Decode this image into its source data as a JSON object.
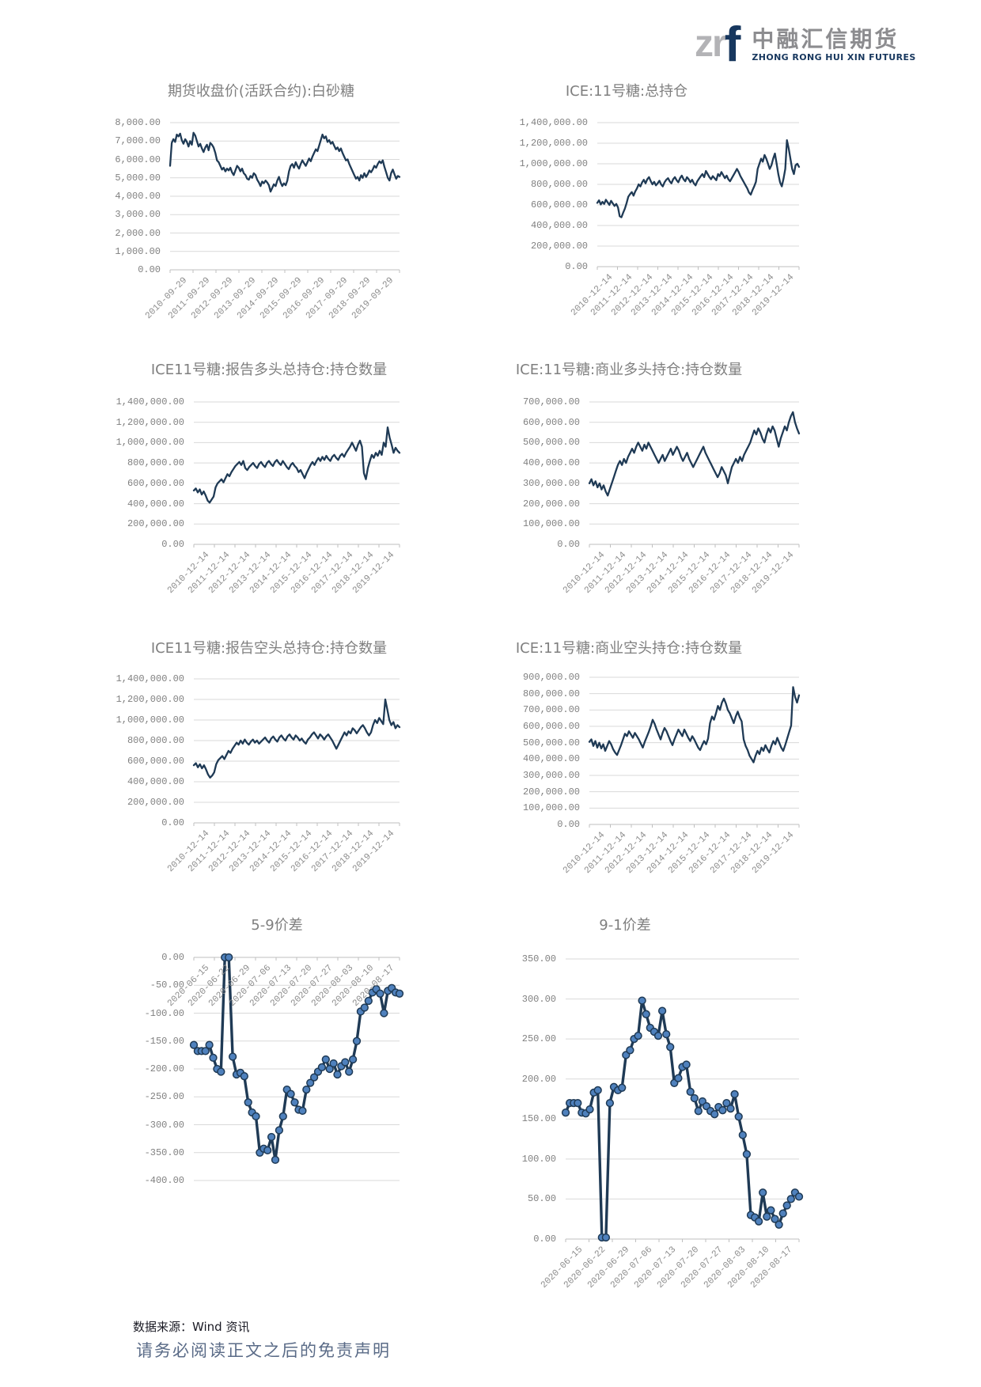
{
  "logo": {
    "zr": "zr",
    "f": "f",
    "name_cn": "中融汇信期货",
    "name_en": "ZHONG RONG HUI XIN FUTURES"
  },
  "footer": {
    "source": "数据来源：Wind 资讯",
    "disclaimer": "请务必阅读正文之后的免责声明"
  },
  "colors": {
    "line": "#1f3a55",
    "marker_fill": "#4f81bd",
    "grid": "#d9d9d9",
    "axis": "#bfbfbf",
    "tick_text": "#808080",
    "title_text": "#7f7f7f",
    "logo_gray": "#b3b3b6",
    "logo_navy": "#17375e",
    "disclaimer_blue": "#5a6b87"
  },
  "chart_data": [
    {
      "type": "line",
      "title": "期货收盘价(活跃合约):白砂糖",
      "y_min": 0,
      "y_max": 8000,
      "values_scale": 1,
      "y_tick_labels": [
        "8,000.00",
        "7,000.00",
        "6,000.00",
        "5,000.00",
        "4,000.00",
        "3,000.00",
        "2,000.00",
        "1,000.00",
        "0.00"
      ],
      "x_labels": [
        "2010-09-29",
        "2011-09-29",
        "2012-09-29",
        "2013-09-29",
        "2014-09-29",
        "2015-09-29",
        "2016-09-29",
        "2017-09-29",
        "2018-09-29",
        "2019-09-29"
      ],
      "markers": false,
      "values": [
        5650,
        6900,
        7100,
        6950,
        7350,
        7250,
        7400,
        7050,
        6850,
        7100,
        6950,
        6700,
        7000,
        6800,
        7450,
        7300,
        7000,
        6700,
        6850,
        6600,
        6400,
        6650,
        6800,
        6500,
        6900,
        6800,
        6650,
        6350,
        5950,
        5850,
        5650,
        5450,
        5550,
        5350,
        5500,
        5400,
        5550,
        5300,
        5150,
        5400,
        5650,
        5550,
        5350,
        5500,
        5250,
        5150,
        4950,
        4900,
        5100,
        5000,
        5250,
        5150,
        4900,
        4750,
        4550,
        4800,
        4700,
        4850,
        4750,
        4600,
        4250,
        4450,
        4650,
        4550,
        4850,
        5050,
        4750,
        4550,
        4700,
        4600,
        4850,
        5350,
        5650,
        5750,
        5550,
        5850,
        5650,
        5500,
        5750,
        5950,
        5800,
        5650,
        5850,
        6050,
        5900,
        6150,
        6350,
        6550,
        6450,
        6750,
        7050,
        7350,
        7150,
        7250,
        6950,
        7050,
        6850,
        6950,
        6750,
        6550,
        6650,
        6450,
        6600,
        6350,
        6150,
        5950,
        6000,
        5750,
        5550,
        5350,
        5150,
        4950,
        5050,
        4850,
        5150,
        5000,
        5250,
        5050,
        5200,
        5400,
        5300,
        5450,
        5650,
        5550,
        5750,
        5900,
        5800,
        5950,
        5600,
        5300,
        5000,
        4850,
        5250,
        5450,
        5200,
        4950,
        5100,
        5050
      ]
    },
    {
      "type": "line",
      "title": "ICE:11号糖:总持仓",
      "y_min": 0,
      "y_max": 1400,
      "values_scale": 1000,
      "y_tick_labels": [
        "1,400,000.00",
        "1,200,000.00",
        "1,000,000.00",
        "800,000.00",
        "600,000.00",
        "400,000.00",
        "200,000.00",
        "0.00"
      ],
      "x_labels": [
        "2010-12-14",
        "2011-12-14",
        "2012-12-14",
        "2013-12-14",
        "2014-12-14",
        "2015-12-14",
        "2016-12-14",
        "2017-12-14",
        "2018-12-14",
        "2019-12-14"
      ],
      "markers": false,
      "values": [
        620,
        645,
        605,
        630,
        610,
        650,
        625,
        600,
        640,
        615,
        590,
        610,
        575,
        490,
        480,
        525,
        565,
        620,
        680,
        705,
        725,
        690,
        730,
        760,
        800,
        780,
        820,
        845,
        810,
        850,
        870,
        830,
        800,
        825,
        790,
        810,
        835,
        800,
        780,
        820,
        845,
        860,
        830,
        810,
        850,
        870,
        840,
        820,
        860,
        885,
        850,
        830,
        870,
        850,
        820,
        845,
        810,
        790,
        830,
        855,
        880,
        900,
        870,
        930,
        900,
        870,
        850,
        880,
        860,
        840,
        900,
        880,
        920,
        890,
        860,
        885,
        850,
        830,
        860,
        890,
        920,
        950,
        920,
        880,
        850,
        820,
        790,
        760,
        720,
        700,
        745,
        780,
        825,
        950,
        1000,
        1050,
        1020,
        1085,
        1050,
        1000,
        950,
        985,
        1050,
        1100,
        1000,
        900,
        820,
        780,
        855,
        950,
        1230,
        1150,
        1050,
        950,
        900,
        985,
        1000,
        970
      ]
    },
    {
      "type": "line",
      "title": "ICE11号糖:报告多头总持仓:持仓数量",
      "y_min": 0,
      "y_max": 1400,
      "values_scale": 1000,
      "y_tick_labels": [
        "1,400,000.00",
        "1,200,000.00",
        "1,000,000.00",
        "800,000.00",
        "600,000.00",
        "400,000.00",
        "200,000.00",
        "0.00"
      ],
      "x_labels": [
        "2010-12-14",
        "2011-12-14",
        "2012-12-14",
        "2013-12-14",
        "2014-12-14",
        "2015-12-14",
        "2016-12-14",
        "2017-12-14",
        "2018-12-14",
        "2019-12-14"
      ],
      "markers": false,
      "values": [
        530,
        550,
        510,
        540,
        490,
        520,
        480,
        430,
        410,
        440,
        470,
        560,
        600,
        620,
        640,
        610,
        650,
        690,
        670,
        710,
        740,
        770,
        790,
        810,
        780,
        820,
        750,
        730,
        760,
        780,
        800,
        770,
        750,
        790,
        810,
        780,
        760,
        800,
        820,
        790,
        770,
        810,
        830,
        800,
        780,
        820,
        790,
        760,
        740,
        780,
        800,
        770,
        750,
        710,
        730,
        690,
        650,
        700,
        740,
        780,
        810,
        780,
        820,
        850,
        820,
        860,
        830,
        870,
        840,
        820,
        860,
        880,
        850,
        830,
        870,
        890,
        860,
        900,
        930,
        960,
        1000,
        960,
        920,
        980,
        1020,
        960,
        700,
        640,
        750,
        820,
        880,
        850,
        900,
        870,
        920,
        880,
        1000,
        960,
        1150,
        1050,
        980,
        900,
        950,
        920,
        900
      ]
    },
    {
      "type": "line",
      "title": "ICE:11号糖:商业多头持仓:持仓数量",
      "y_min": 0,
      "y_max": 700,
      "values_scale": 1000,
      "y_tick_labels": [
        "700,000.00",
        "600,000.00",
        "500,000.00",
        "400,000.00",
        "300,000.00",
        "200,000.00",
        "100,000.00",
        "0.00"
      ],
      "x_labels": [
        "2010-12-14",
        "2011-12-14",
        "2012-12-14",
        "2013-12-14",
        "2014-12-14",
        "2015-12-14",
        "2016-12-14",
        "2017-12-14",
        "2018-12-14",
        "2019-12-14"
      ],
      "markers": false,
      "values": [
        300,
        320,
        290,
        310,
        280,
        300,
        270,
        290,
        260,
        240,
        270,
        300,
        330,
        360,
        390,
        410,
        390,
        420,
        400,
        430,
        450,
        470,
        450,
        480,
        500,
        480,
        460,
        490,
        470,
        500,
        480,
        460,
        440,
        420,
        400,
        420,
        440,
        410,
        430,
        450,
        470,
        440,
        460,
        480,
        460,
        430,
        410,
        430,
        450,
        420,
        400,
        380,
        400,
        420,
        440,
        460,
        480,
        450,
        430,
        410,
        390,
        370,
        350,
        330,
        350,
        380,
        360,
        340,
        300,
        340,
        380,
        400,
        420,
        400,
        430,
        410,
        440,
        460,
        480,
        500,
        530,
        560,
        540,
        570,
        550,
        520,
        500,
        540,
        570,
        550,
        580,
        560,
        520,
        480,
        520,
        550,
        580,
        560,
        600,
        630,
        650,
        600,
        570,
        545
      ]
    },
    {
      "type": "line",
      "title": "ICE11号糖:报告空头总持仓:持仓数量",
      "y_min": 0,
      "y_max": 1400,
      "values_scale": 1000,
      "y_tick_labels": [
        "1,400,000.00",
        "1,200,000.00",
        "1,000,000.00",
        "800,000.00",
        "600,000.00",
        "400,000.00",
        "200,000.00",
        "0.00"
      ],
      "x_labels": [
        "2010-12-14",
        "2011-12-14",
        "2012-12-14",
        "2013-12-14",
        "2014-12-14",
        "2015-12-14",
        "2016-12-14",
        "2017-12-14",
        "2018-12-14",
        "2019-12-14"
      ],
      "markers": false,
      "values": [
        560,
        580,
        540,
        570,
        530,
        560,
        520,
        470,
        440,
        460,
        490,
        570,
        610,
        630,
        650,
        620,
        660,
        700,
        680,
        720,
        750,
        780,
        760,
        800,
        770,
        810,
        780,
        760,
        790,
        810,
        780,
        800,
        770,
        790,
        810,
        830,
        800,
        780,
        820,
        840,
        810,
        790,
        830,
        850,
        820,
        800,
        840,
        860,
        830,
        810,
        850,
        830,
        800,
        820,
        790,
        770,
        810,
        830,
        860,
        880,
        850,
        820,
        860,
        840,
        810,
        840,
        860,
        830,
        800,
        760,
        720,
        760,
        800,
        840,
        880,
        850,
        890,
        870,
        920,
        900,
        870,
        900,
        930,
        950,
        920,
        880,
        850,
        880,
        950,
        1000,
        970,
        1020,
        990,
        960,
        1200,
        1100,
        1000,
        950,
        980,
        920,
        950,
        930
      ]
    },
    {
      "type": "line",
      "title": "ICE:11号糖:商业空头持仓:持仓数量",
      "y_min": 0,
      "y_max": 900,
      "values_scale": 1000,
      "y_tick_labels": [
        "900,000.00",
        "800,000.00",
        "700,000.00",
        "600,000.00",
        "500,000.00",
        "400,000.00",
        "300,000.00",
        "200,000.00",
        "100,000.00",
        "0.00"
      ],
      "x_labels": [
        "2010-12-14",
        "2011-12-14",
        "2012-12-14",
        "2013-12-14",
        "2014-12-14",
        "2015-12-14",
        "2016-12-14",
        "2017-12-14",
        "2018-12-14",
        "2019-12-14"
      ],
      "markers": false,
      "values": [
        505,
        520,
        480,
        510,
        470,
        500,
        465,
        490,
        450,
        480,
        510,
        490,
        460,
        440,
        425,
        455,
        485,
        520,
        555,
        540,
        570,
        550,
        530,
        560,
        540,
        520,
        495,
        470,
        505,
        535,
        565,
        600,
        640,
        615,
        580,
        550,
        520,
        560,
        590,
        570,
        540,
        510,
        485,
        520,
        550,
        580,
        560,
        540,
        580,
        555,
        530,
        510,
        540,
        520,
        495,
        470,
        455,
        485,
        510,
        490,
        525,
        620,
        660,
        640,
        680,
        725,
        700,
        745,
        770,
        740,
        700,
        680,
        650,
        620,
        660,
        690,
        655,
        630,
        520,
        480,
        455,
        420,
        400,
        380,
        420,
        450,
        430,
        470,
        450,
        485,
        460,
        440,
        480,
        510,
        490,
        530,
        500,
        470,
        450,
        485,
        525,
        565,
        605,
        840,
        780,
        745,
        790
      ]
    },
    {
      "type": "line",
      "title": "5-9价差",
      "y_min": -400,
      "y_max": 0,
      "values_scale": 1,
      "y_tick_labels": [
        "0.00",
        "-50.00",
        "-100.00",
        "-150.00",
        "-200.00",
        "-250.00",
        "-300.00",
        "-350.00",
        "-400.00"
      ],
      "x_labels": [
        "2020-06-15",
        "2020-06-22",
        "2020-06-29",
        "2020-07-06",
        "2020-07-13",
        "2020-07-20",
        "2020-07-27",
        "2020-08-03",
        "2020-08-10",
        "2020-08-17"
      ],
      "markers": true,
      "x_labels_at_top": true,
      "values": [
        -157,
        -168,
        -168,
        -168,
        -157,
        -180,
        -200,
        -205,
        0,
        0,
        -178,
        -210,
        -207,
        -213,
        -260,
        -278,
        -285,
        -350,
        -343,
        -346,
        -322,
        -363,
        -310,
        -285,
        -237,
        -245,
        -260,
        -273,
        -275,
        -237,
        -225,
        -215,
        -205,
        -197,
        -183,
        -200,
        -190,
        -210,
        -195,
        -188,
        -205,
        -183,
        -150,
        -97,
        -90,
        -78,
        -63,
        -57,
        -65,
        -100,
        -60,
        -55,
        -63,
        -65
      ]
    },
    {
      "type": "line",
      "title": "9-1价差",
      "y_min": 0,
      "y_max": 350,
      "values_scale": 1,
      "y_tick_labels": [
        "350.00",
        "300.00",
        "250.00",
        "200.00",
        "150.00",
        "100.00",
        "50.00",
        "0.00"
      ],
      "x_labels": [
        "2020-06-15",
        "2020-06-22",
        "2020-06-29",
        "2020-07-06",
        "2020-07-13",
        "2020-07-20",
        "2020-07-27",
        "2020-08-03",
        "2020-08-10",
        "2020-08-17"
      ],
      "markers": true,
      "values": [
        158,
        170,
        170,
        170,
        158,
        157,
        162,
        183,
        186,
        2,
        2,
        170,
        190,
        186,
        189,
        230,
        236,
        250,
        254,
        298,
        281,
        264,
        259,
        254,
        285,
        256,
        240,
        195,
        201,
        215,
        218,
        184,
        176,
        160,
        172,
        166,
        160,
        156,
        165,
        161,
        170,
        163,
        181,
        153,
        130,
        106,
        30,
        27,
        22,
        58,
        28,
        36,
        25,
        18,
        32,
        42,
        50,
        58,
        53
      ]
    }
  ]
}
